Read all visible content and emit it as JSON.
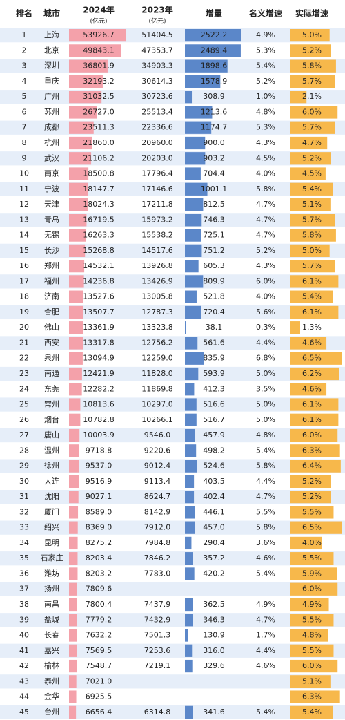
{
  "columns": [
    {
      "title": "排名"
    },
    {
      "title": "城市"
    },
    {
      "title": "2024年",
      "unit": "(亿元)"
    },
    {
      "title": "2023年",
      "unit": "(亿元)"
    },
    {
      "title": "增量"
    },
    {
      "title": "名义增速"
    },
    {
      "title": "实际增速"
    }
  ],
  "rows": [
    [
      "1",
      "上海",
      "53926.7",
      "51404.5",
      "2522.2",
      "4.9%",
      "5.0%"
    ],
    [
      "2",
      "北京",
      "49843.1",
      "47353.7",
      "2489.4",
      "5.3%",
      "5.2%"
    ],
    [
      "3",
      "深圳",
      "36801.9",
      "34903.3",
      "1898.6",
      "5.4%",
      "5.8%"
    ],
    [
      "4",
      "重庆",
      "32193.2",
      "30614.3",
      "1578.9",
      "5.2%",
      "5.7%"
    ],
    [
      "5",
      "广州",
      "31032.5",
      "30723.6",
      "308.9",
      "1.0%",
      "2.1%"
    ],
    [
      "6",
      "苏州",
      "26727.0",
      "25513.4",
      "1213.6",
      "4.8%",
      "6.0%"
    ],
    [
      "7",
      "成都",
      "23511.3",
      "22336.6",
      "1174.7",
      "5.3%",
      "5.7%"
    ],
    [
      "8",
      "杭州",
      "21860.0",
      "20960.0",
      "900.0",
      "4.3%",
      "4.7%"
    ],
    [
      "9",
      "武汉",
      "21106.2",
      "20203.0",
      "903.2",
      "4.5%",
      "5.2%"
    ],
    [
      "10",
      "南京",
      "18500.8",
      "17796.4",
      "704.4",
      "4.0%",
      "4.5%"
    ],
    [
      "11",
      "宁波",
      "18147.7",
      "17146.6",
      "1001.1",
      "5.8%",
      "5.4%"
    ],
    [
      "12",
      "天津",
      "18024.3",
      "17211.8",
      "812.5",
      "4.7%",
      "5.1%"
    ],
    [
      "13",
      "青岛",
      "16719.5",
      "15973.2",
      "746.3",
      "4.7%",
      "5.7%"
    ],
    [
      "14",
      "无锡",
      "16263.3",
      "15538.2",
      "725.1",
      "4.7%",
      "5.8%"
    ],
    [
      "15",
      "长沙",
      "15268.8",
      "14517.6",
      "751.2",
      "5.2%",
      "5.0%"
    ],
    [
      "16",
      "郑州",
      "14532.1",
      "13926.8",
      "605.3",
      "4.3%",
      "5.7%"
    ],
    [
      "17",
      "福州",
      "14236.8",
      "13426.9",
      "809.9",
      "6.0%",
      "6.1%"
    ],
    [
      "18",
      "济南",
      "13527.6",
      "13005.8",
      "521.8",
      "4.0%",
      "5.4%"
    ],
    [
      "19",
      "合肥",
      "13507.7",
      "12787.3",
      "720.4",
      "5.6%",
      "6.1%"
    ],
    [
      "20",
      "佛山",
      "13361.9",
      "13323.8",
      "38.1",
      "0.3%",
      "1.3%"
    ],
    [
      "21",
      "西安",
      "13317.8",
      "12756.2",
      "561.6",
      "4.4%",
      "4.6%"
    ],
    [
      "22",
      "泉州",
      "13094.9",
      "12259.0",
      "835.9",
      "6.8%",
      "6.5%"
    ],
    [
      "23",
      "南通",
      "12421.9",
      "11828.0",
      "593.9",
      "5.0%",
      "6.2%"
    ],
    [
      "24",
      "东莞",
      "12282.2",
      "11869.8",
      "412.3",
      "3.5%",
      "4.6%"
    ],
    [
      "25",
      "常州",
      "10813.6",
      "10297.0",
      "516.6",
      "5.0%",
      "6.1%"
    ],
    [
      "26",
      "烟台",
      "10782.8",
      "10266.1",
      "516.7",
      "5.0%",
      "6.1%"
    ],
    [
      "27",
      "唐山",
      "10003.9",
      "9546.0",
      "457.9",
      "4.8%",
      "6.0%"
    ],
    [
      "28",
      "温州",
      "9718.8",
      "9220.6",
      "498.2",
      "5.4%",
      "6.3%"
    ],
    [
      "29",
      "徐州",
      "9537.0",
      "9012.4",
      "524.6",
      "5.8%",
      "6.4%"
    ],
    [
      "30",
      "大连",
      "9516.9",
      "9113.4",
      "403.5",
      "4.4%",
      "5.2%"
    ],
    [
      "31",
      "沈阳",
      "9027.1",
      "8624.7",
      "402.4",
      "4.7%",
      "5.2%"
    ],
    [
      "32",
      "厦门",
      "8589.0",
      "8142.9",
      "446.1",
      "5.5%",
      "5.5%"
    ],
    [
      "33",
      "绍兴",
      "8369.0",
      "7912.0",
      "457.0",
      "5.8%",
      "6.5%"
    ],
    [
      "34",
      "昆明",
      "8275.2",
      "7984.8",
      "290.4",
      "3.6%",
      "4.0%"
    ],
    [
      "35",
      "石家庄",
      "8203.4",
      "7846.2",
      "357.2",
      "4.6%",
      "5.5%"
    ],
    [
      "36",
      "潍坊",
      "8203.2",
      "7783.0",
      "420.2",
      "5.4%",
      "5.9%"
    ],
    [
      "37",
      "扬州",
      "7809.6",
      null,
      null,
      null,
      "6.0%"
    ],
    [
      "38",
      "南昌",
      "7800.4",
      "7437.9",
      "362.5",
      "4.9%",
      "4.9%"
    ],
    [
      "39",
      "盐城",
      "7779.2",
      "7432.9",
      "346.3",
      "4.7%",
      "5.5%"
    ],
    [
      "40",
      "长春",
      "7632.2",
      "7501.3",
      "130.9",
      "1.7%",
      "4.8%"
    ],
    [
      "41",
      "嘉兴",
      "7569.5",
      "7253.6",
      "316.0",
      "4.4%",
      "5.5%"
    ],
    [
      "42",
      "榆林",
      "7548.7",
      "7219.1",
      "329.6",
      "4.6%",
      "6.0%"
    ],
    [
      "43",
      "泰州",
      "7021.0",
      null,
      null,
      null,
      "5.1%"
    ],
    [
      "44",
      "金华",
      "6925.5",
      null,
      null,
      null,
      "6.3%"
    ],
    [
      "45",
      "台州",
      "6656.4",
      "6314.8",
      "341.6",
      "5.4%",
      "5.4%"
    ]
  ]
}
